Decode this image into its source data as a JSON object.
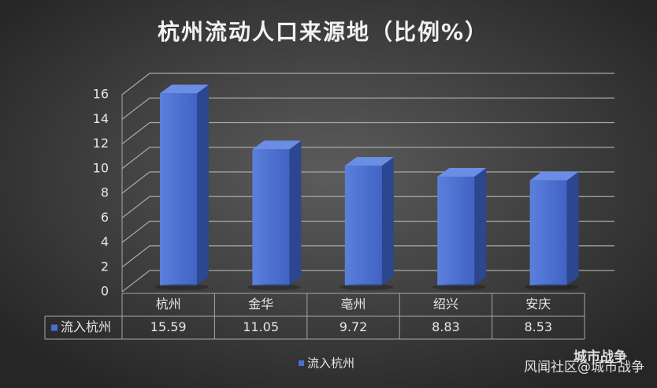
{
  "chart_data": {
    "type": "bar3d",
    "title": "杭州流动人口来源地（比例%）",
    "categories": [
      "杭州",
      "金华",
      "亳州",
      "绍兴",
      "安庆"
    ],
    "series": [
      {
        "name": "流入杭州",
        "color": "#4a6fd0",
        "values": [
          15.59,
          11.05,
          9.72,
          8.83,
          8.53
        ]
      }
    ],
    "ylim": [
      0,
      16
    ],
    "yticks": [
      0,
      2,
      4,
      6,
      8,
      10,
      12,
      14,
      16
    ],
    "grid": true,
    "data_table": true,
    "legend": "bottom"
  },
  "watermark": {
    "account": "城市战争",
    "source": "风闻社区@城市战争"
  }
}
